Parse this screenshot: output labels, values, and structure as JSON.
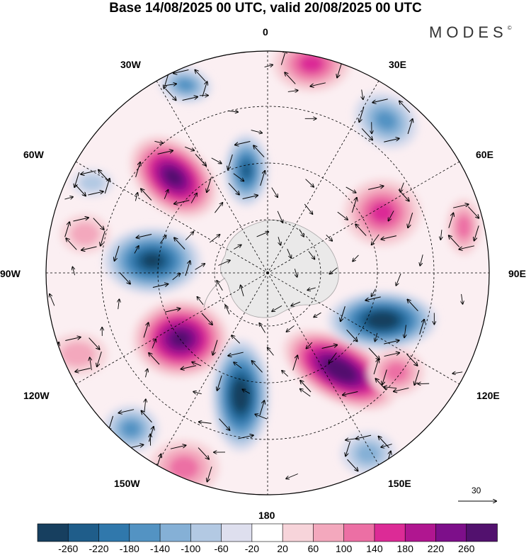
{
  "title": "Base 14/08/2025 00 UTC, valid 20/08/2025 00 UTC",
  "logo": "MODES",
  "logo_mark": "©",
  "longitude_labels": {
    "top": "0",
    "top_right": "30E",
    "right_upper": "60E",
    "right": "90E",
    "right_lower": "120E",
    "bottom_right": "150E",
    "bottom": "180",
    "bottom_left": "150W",
    "left_lower": "120W",
    "left": "90W",
    "left_upper": "60W",
    "top_left": "30W"
  },
  "reference_vector_label": "30",
  "colorbar": {
    "labels": [
      "-260",
      "-220",
      "-180",
      "-140",
      "-100",
      "-60",
      "-20",
      "20",
      "60",
      "100",
      "140",
      "180",
      "220",
      "260"
    ],
    "colors": [
      "#173f5f",
      "#1f5d8a",
      "#3078ac",
      "#5393c3",
      "#85b0d6",
      "#b3c9e3",
      "#dedfee",
      "#ffffff",
      "#f7d4da",
      "#f3a8bd",
      "#ec6fa4",
      "#dc2b96",
      "#b01690",
      "#7d0f8a",
      "#52116e"
    ]
  }
}
